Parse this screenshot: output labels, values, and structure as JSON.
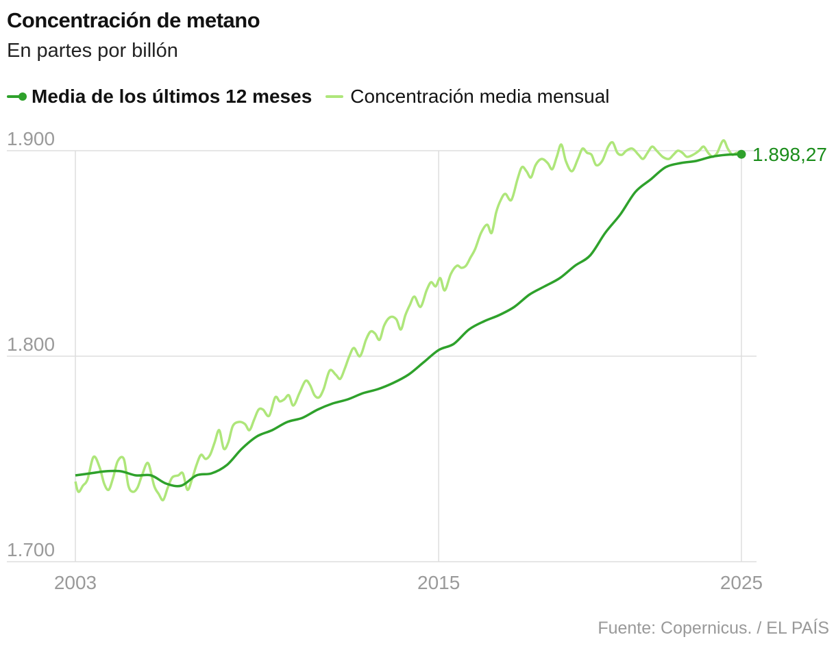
{
  "header": {
    "title": "Concentración de metano",
    "subtitle": "En partes por billón"
  },
  "legend": [
    {
      "label": "Media de los últimos 12 meses",
      "color": "#2ea12b",
      "bold": true
    },
    {
      "label": "Concentración media mensual",
      "color": "#aee67a",
      "bold": false
    }
  ],
  "footer": {
    "source": "Fuente: Copernicus. / EL PAÍS"
  },
  "colors": {
    "grid": "#dddddd",
    "tick": "#9a9a9a",
    "avg": "#2ea12b",
    "monthly": "#aee67a",
    "end_label": "#1a8c1a"
  },
  "chart_data": {
    "type": "line",
    "title": "Concentración de metano",
    "subtitle": "En partes por billón",
    "xlim": [
      2003.0,
      2025.0
    ],
    "ylim": [
      1700,
      1900
    ],
    "x_ticks": [
      2003,
      2015,
      2025
    ],
    "x_tick_labels": [
      "2003",
      "2015",
      "2025"
    ],
    "y_ticks": [
      1700,
      1800,
      1900
    ],
    "y_tick_labels": [
      "1.700",
      "1.800",
      "1.900"
    ],
    "grid": true,
    "legend_position": "top-left",
    "end_label": "1.898,27",
    "end_value": 1898.27,
    "series": [
      {
        "name": "Media de los últimos 12 meses",
        "x": [
          2003.0,
          2003.5,
          2004.0,
          2004.5,
          2005.0,
          2005.5,
          2006.0,
          2006.5,
          2007.0,
          2007.5,
          2008.0,
          2008.5,
          2009.0,
          2009.5,
          2010.0,
          2010.5,
          2011.0,
          2011.5,
          2012.0,
          2012.5,
          2013.0,
          2013.5,
          2014.0,
          2014.5,
          2015.0,
          2015.5,
          2016.0,
          2016.5,
          2017.0,
          2017.5,
          2018.0,
          2018.5,
          2019.0,
          2019.5,
          2020.0,
          2020.5,
          2021.0,
          2021.5,
          2022.0,
          2022.5,
          2023.0,
          2023.5,
          2024.0,
          2024.5,
          2025.0
        ],
        "values": [
          1742,
          1743,
          1744,
          1744,
          1742,
          1742,
          1738,
          1737,
          1742,
          1743,
          1747,
          1755,
          1761,
          1764,
          1768,
          1770,
          1774,
          1777,
          1779,
          1782,
          1784,
          1787,
          1791,
          1797,
          1803,
          1806,
          1813,
          1817,
          1820,
          1824,
          1830,
          1834,
          1838,
          1844,
          1849,
          1860,
          1869,
          1880,
          1886,
          1892,
          1894,
          1895,
          1897,
          1898,
          1898.27
        ]
      },
      {
        "name": "Concentración media mensual",
        "x": [
          2003.0,
          2003.1,
          2003.25,
          2003.4,
          2003.6,
          2003.8,
          2003.95,
          2004.1,
          2004.25,
          2004.4,
          2004.6,
          2004.75,
          2004.9,
          2005.05,
          2005.2,
          2005.4,
          2005.6,
          2005.75,
          2005.9,
          2006.05,
          2006.2,
          2006.4,
          2006.55,
          2006.7,
          2006.85,
          2007.0,
          2007.15,
          2007.3,
          2007.45,
          2007.6,
          2007.75,
          2007.9,
          2008.05,
          2008.2,
          2008.4,
          2008.6,
          2008.75,
          2008.9,
          2009.05,
          2009.2,
          2009.4,
          2009.6,
          2009.75,
          2009.9,
          2010.05,
          2010.2,
          2010.4,
          2010.6,
          2010.75,
          2010.9,
          2011.05,
          2011.2,
          2011.4,
          2011.6,
          2011.75,
          2011.9,
          2012.05,
          2012.2,
          2012.4,
          2012.6,
          2012.75,
          2012.9,
          2013.05,
          2013.2,
          2013.4,
          2013.6,
          2013.75,
          2013.9,
          2014.05,
          2014.2,
          2014.4,
          2014.6,
          2014.75,
          2014.9,
          2015.05,
          2015.2,
          2015.4,
          2015.6,
          2015.75,
          2015.9,
          2016.05,
          2016.2,
          2016.4,
          2016.6,
          2016.75,
          2016.9,
          2017.05,
          2017.2,
          2017.4,
          2017.6,
          2017.75,
          2017.9,
          2018.05,
          2018.2,
          2018.4,
          2018.6,
          2018.75,
          2018.9,
          2019.05,
          2019.2,
          2019.4,
          2019.6,
          2019.75,
          2019.9,
          2020.05,
          2020.2,
          2020.4,
          2020.6,
          2020.75,
          2020.9,
          2021.05,
          2021.2,
          2021.4,
          2021.6,
          2021.75,
          2021.9,
          2022.05,
          2022.2,
          2022.4,
          2022.6,
          2022.75,
          2022.9,
          2023.05,
          2023.2,
          2023.4,
          2023.6,
          2023.75,
          2023.9,
          2024.05,
          2024.2,
          2024.4,
          2024.55,
          2024.7,
          2024.85,
          2025.0
        ],
        "values": [
          1739,
          1734,
          1737,
          1740,
          1751,
          1746,
          1738,
          1735,
          1741,
          1749,
          1750,
          1737,
          1734,
          1736,
          1742,
          1748,
          1737,
          1733,
          1730,
          1736,
          1741,
          1742,
          1743,
          1735,
          1740,
          1747,
          1752,
          1750,
          1752,
          1758,
          1764,
          1755,
          1758,
          1766,
          1768,
          1767,
          1764,
          1769,
          1774,
          1774,
          1771,
          1780,
          1778,
          1779,
          1781,
          1776,
          1782,
          1788,
          1786,
          1781,
          1780,
          1784,
          1793,
          1791,
          1789,
          1794,
          1800,
          1804,
          1800,
          1808,
          1812,
          1811,
          1808,
          1815,
          1819,
          1818,
          1813,
          1820,
          1825,
          1829,
          1824,
          1832,
          1836,
          1834,
          1838,
          1832,
          1840,
          1844,
          1843,
          1844,
          1848,
          1852,
          1860,
          1864,
          1860,
          1870,
          1876,
          1879,
          1876,
          1886,
          1892,
          1890,
          1887,
          1893,
          1896,
          1894,
          1891,
          1897,
          1903,
          1895,
          1890,
          1896,
          1901,
          1899,
          1898,
          1893,
          1895,
          1902,
          1904,
          1899,
          1898,
          1900,
          1901,
          1898,
          1896,
          1899,
          1902,
          1900,
          1897,
          1896,
          1898,
          1900,
          1899,
          1897,
          1898,
          1900,
          1902,
          1899,
          1897,
          1899,
          1905,
          1901,
          1898,
          1899,
          1898
        ]
      }
    ]
  }
}
